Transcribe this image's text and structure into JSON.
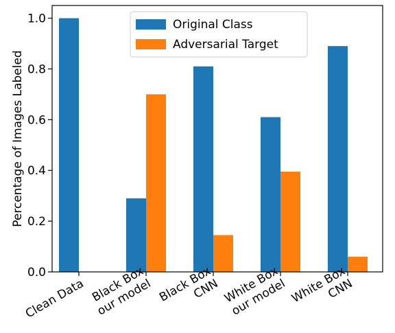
{
  "chart_data": {
    "type": "bar",
    "title": "",
    "xlabel": "",
    "ylabel": "Percentage of Images Labeled",
    "ylim": [
      0,
      1.05
    ],
    "yticks": [
      "0.0",
      "0.2",
      "0.4",
      "0.6",
      "0.8",
      "1.0"
    ],
    "categories": [
      [
        "Clean Data"
      ],
      [
        "Black Box",
        "our model"
      ],
      [
        "Black Box",
        "CNN"
      ],
      [
        "White Box",
        "our model"
      ],
      [
        "White Box",
        "CNN"
      ]
    ],
    "series": [
      {
        "name": "Original Class",
        "color": "#1f77b4",
        "values": [
          1.0,
          0.29,
          0.81,
          0.61,
          0.89
        ]
      },
      {
        "name": "Adversarial Target",
        "color": "#ff7f0e",
        "values": [
          0.0,
          0.7,
          0.145,
          0.395,
          0.06
        ]
      }
    ],
    "legend": "top-center",
    "grid": false
  }
}
